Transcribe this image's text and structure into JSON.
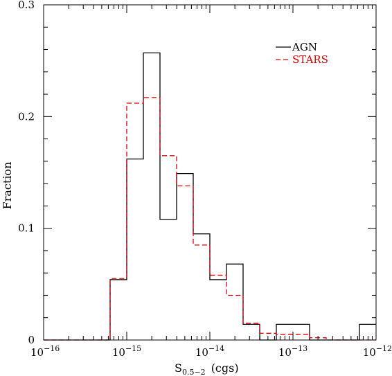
{
  "chart_data": {
    "type": "histogram",
    "xscale": "log",
    "xlim": [
      1e-16,
      1e-12
    ],
    "ylim": [
      0,
      0.3
    ],
    "xlabel_main": "S",
    "xlabel_sub": "0.5−2",
    "xlabel_unit": "(cgs)",
    "ylabel": "Fraction",
    "grid": false,
    "legend_position": "top-right",
    "xticks": [
      {
        "value": 1e-16,
        "base": "10",
        "exp": "−16"
      },
      {
        "value": 1e-15,
        "base": "10",
        "exp": "−15"
      },
      {
        "value": 1e-14,
        "base": "10",
        "exp": "−14"
      },
      {
        "value": 1e-13,
        "base": "10",
        "exp": "−13"
      },
      {
        "value": 1e-12,
        "base": "10",
        "exp": "−12"
      }
    ],
    "yticks": [
      {
        "value": 0,
        "label": "0"
      },
      {
        "value": 0.1,
        "label": "0.1"
      },
      {
        "value": 0.2,
        "label": "0.2"
      },
      {
        "value": 0.3,
        "label": "0.3"
      }
    ],
    "bin_edges": [
      1e-16,
      1.585e-16,
      2.512e-16,
      3.981e-16,
      6.31e-16,
      1e-15,
      1.585e-15,
      2.512e-15,
      3.981e-15,
      6.31e-15,
      1e-14,
      1.585e-14,
      2.512e-14,
      3.981e-14,
      6.31e-14,
      1e-13,
      1.585e-13,
      2.512e-13,
      3.981e-13,
      6.31e-13,
      1e-12
    ],
    "series": [
      {
        "name": "AGN",
        "color": "#000000",
        "dash": "solid",
        "values": [
          0,
          0,
          0,
          0,
          0.054,
          0.162,
          0.257,
          0.108,
          0.149,
          0.095,
          0.054,
          0.068,
          0.014,
          0,
          0.014,
          0.014,
          0,
          0,
          0,
          0.014
        ]
      },
      {
        "name": "STARS",
        "color": "#e00000",
        "dash": "dashed",
        "values": [
          0,
          0,
          0,
          0,
          0.055,
          0.212,
          0.217,
          0.165,
          0.138,
          0.085,
          0.058,
          0.04,
          0.015,
          0.006,
          0.005,
          0.005,
          0.002,
          0,
          0,
          0
        ]
      }
    ]
  }
}
